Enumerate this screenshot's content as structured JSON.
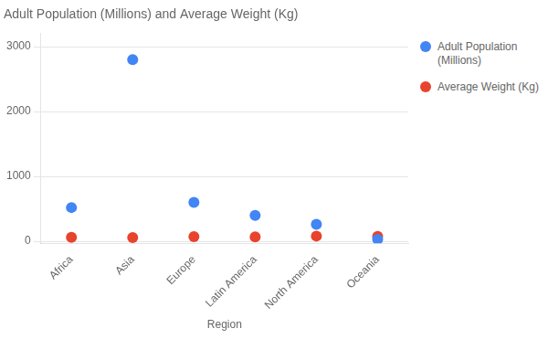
{
  "chart_data": {
    "type": "scatter",
    "title": "Adult Population (Millions) and Average Weight (Kg)",
    "xlabel": "Region",
    "categories": [
      "Africa",
      "Asia",
      "Europe",
      "Latin America",
      "North America",
      "Oceania"
    ],
    "series": [
      {
        "name": "Adult Population\n(Millions)",
        "color": "#4285F4",
        "values": [
          520,
          2800,
          600,
          400,
          260,
          30
        ]
      },
      {
        "name": "Average Weight (Kg)",
        "color": "#E8432D",
        "values": [
          60,
          57,
          70,
          67,
          80,
          74
        ]
      }
    ],
    "ylim": [
      -30,
      3200
    ],
    "yticks": [
      0,
      1000,
      2000,
      3000
    ],
    "grid": "y",
    "legend": "right"
  }
}
